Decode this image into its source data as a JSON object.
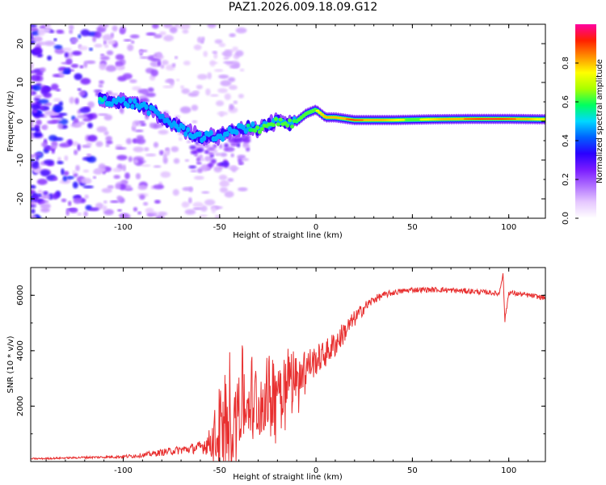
{
  "title": "PAZ1.2026.009.18.09.G12",
  "chart_data": [
    {
      "type": "heatmap",
      "name": "spectrogram",
      "xlabel": "Height of straight line (km)",
      "ylabel": "Frequency (Hz)",
      "xlim": [
        -148,
        119
      ],
      "ylim": [
        -25,
        25
      ],
      "xticks": [
        -100,
        -50,
        0,
        50,
        100
      ],
      "yticks": [
        -20,
        -10,
        0,
        10,
        20
      ],
      "xtick_labels": [
        "-100",
        "-50",
        "0",
        "50",
        "100"
      ],
      "ytick_labels": [
        "-20",
        "-10",
        "0",
        "10",
        "20"
      ],
      "colorbar": {
        "label": "Normalized spectral amplitude",
        "range": [
          0,
          1
        ],
        "ticks": [
          0.0,
          0.2,
          0.4,
          0.6,
          0.8
        ],
        "tick_labels": [
          "0.0",
          "0.2",
          "0.4",
          "0.6",
          "0.8"
        ],
        "colormap": [
          "#ffffff",
          "#e6c8ff",
          "#b070ff",
          "#7a1cff",
          "#2a00ff",
          "#0060ff",
          "#00d8ff",
          "#00ff60",
          "#a8ff00",
          "#ffff00",
          "#ff9000",
          "#ff2000",
          "#ff00a0"
        ]
      },
      "ridge": {
        "description_points_km_hz": [
          [
            -110,
            5.5
          ],
          [
            -100,
            5
          ],
          [
            -90,
            4
          ],
          [
            -80,
            1
          ],
          [
            -70,
            -2
          ],
          [
            -60,
            -4
          ],
          [
            -50,
            -4
          ],
          [
            -45,
            -3
          ],
          [
            -40,
            -2
          ],
          [
            -35,
            -1.5
          ],
          [
            -30,
            -2
          ],
          [
            -25,
            -1
          ],
          [
            -20,
            0
          ],
          [
            -15,
            -1
          ],
          [
            -10,
            0
          ],
          [
            -5,
            2
          ],
          [
            0,
            3
          ],
          [
            5,
            1
          ],
          [
            10,
            1
          ],
          [
            20,
            0.3
          ],
          [
            40,
            0.3
          ],
          [
            60,
            0.5
          ],
          [
            80,
            0.6
          ],
          [
            100,
            0.6
          ],
          [
            119,
            0.5
          ]
        ],
        "peak_amplitude_km": [
          [
            -110,
            0.55
          ],
          [
            -80,
            0.45
          ],
          [
            -60,
            0.5
          ],
          [
            -40,
            0.5
          ],
          [
            -25,
            0.7
          ],
          [
            -10,
            0.6
          ],
          [
            5,
            0.8
          ],
          [
            20,
            0.9
          ],
          [
            50,
            0.7
          ],
          [
            90,
            0.95
          ],
          [
            100,
            0.9
          ],
          [
            115,
            0.75
          ]
        ]
      }
    },
    {
      "type": "line",
      "name": "snr",
      "xlabel": "Height of straight line (km)",
      "ylabel": "SNR (10 * v/v)",
      "xlim": [
        -148,
        119
      ],
      "ylim": [
        0,
        7000
      ],
      "xticks": [
        -100,
        -50,
        0,
        50,
        100
      ],
      "yticks": [
        2000,
        4000,
        6000
      ],
      "xtick_labels": [
        "-100",
        "-50",
        "0",
        "50",
        "100"
      ],
      "ytick_labels": [
        "2000",
        "4000",
        "6000"
      ],
      "color": "#e83030",
      "series": [
        {
          "name": "SNR",
          "x": [
            -148,
            -140,
            -130,
            -120,
            -110,
            -100,
            -95,
            -90,
            -85,
            -80,
            -75,
            -70,
            -65,
            -60,
            -55,
            -52,
            -50,
            -47,
            -45,
            -42,
            -40,
            -37,
            -35,
            -32,
            -30,
            -27,
            -25,
            -22,
            -20,
            -17,
            -15,
            -12,
            -10,
            -7,
            -5,
            -2,
            0,
            5,
            10,
            15,
            20,
            25,
            30,
            35,
            40,
            45,
            50,
            55,
            60,
            65,
            70,
            75,
            80,
            85,
            90,
            95,
            97,
            98,
            100,
            105,
            110,
            115,
            119
          ],
          "y": [
            100,
            110,
            130,
            150,
            160,
            180,
            200,
            230,
            280,
            330,
            380,
            420,
            460,
            520,
            700,
            900,
            1100,
            1500,
            1900,
            2100,
            2300,
            2400,
            2400,
            2300,
            2250,
            2400,
            2500,
            2700,
            2900,
            3000,
            3100,
            3150,
            3250,
            3350,
            3450,
            3550,
            3650,
            3900,
            4250,
            4700,
            5150,
            5550,
            5850,
            6000,
            6100,
            6150,
            6200,
            6200,
            6200,
            6200,
            6180,
            6160,
            6150,
            6120,
            6100,
            6050,
            6800,
            5100,
            6100,
            6050,
            6000,
            5950,
            5900
          ],
          "noise_amplitude": [
            30,
            30,
            30,
            40,
            40,
            60,
            70,
            80,
            100,
            120,
            140,
            160,
            180,
            220,
            500,
            1200,
            1700,
            2000,
            2200,
            2000,
            1900,
            1800,
            1700,
            1600,
            1500,
            1400,
            1300,
            1300,
            1200,
            1100,
            1100,
            1000,
            900,
            800,
            700,
            600,
            550,
            500,
            500,
            400,
            300,
            220,
            150,
            120,
            110,
            100,
            100,
            100,
            100,
            100,
            100,
            100,
            100,
            90,
            90,
            90,
            90,
            90,
            90,
            90,
            90,
            90,
            90
          ]
        }
      ]
    }
  ]
}
